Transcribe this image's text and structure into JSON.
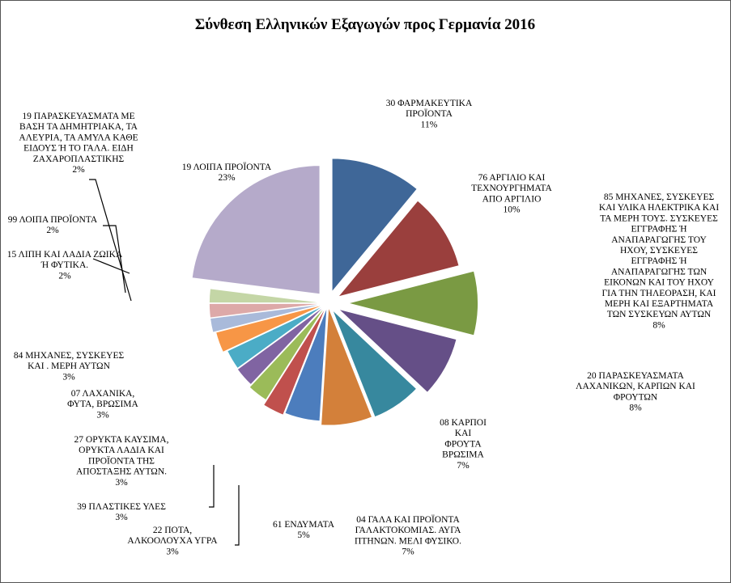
{
  "chart_data": {
    "type": "pie",
    "title": "Σύνθεση Ελληνικών Εξαγωγών προς Γερμανία 2016",
    "unit": "%",
    "slices": [
      {
        "label": [
          "30 ΦΑΡΜΑΚΕΥΤΙΚΑ",
          "ΠΡΟΪΟΝΤΑ",
          "11%"
        ],
        "value": 11,
        "color": "#3F6798"
      },
      {
        "label": [
          "76 ΑΡΓΙΛΙΟ ΚΑΙ",
          "ΤΕΧΝΟΥΡΓΗΜΑΤΑ",
          "ΑΠΟ ΑΡΓΙΛΙΟ",
          "10%"
        ],
        "value": 10,
        "color": "#9A3F3D"
      },
      {
        "label": [
          "85 ΜΗΧΑΝΕΣ, ΣΥΣΚΕΥΕΣ",
          "ΚΑΙ ΥΛΙΚΑ ΗΛΕΚΤΡΙΚΑ ΚΑΙ",
          "ΤΑ ΜΕΡΗ ΤΟΥΣ. ΣΥΣΚΕΥΕΣ",
          "ΕΓΓΡΑΦΗΣ Ή",
          "ΑΝΑΠΑΡΑΓΩΓΗΣ ΤΟΥ",
          "ΗΧΟΥ, ΣΥΣΚΕΥΕΣ",
          "ΕΓΓΡΑΦΗΣ Ή",
          "ΑΝΑΠΑΡΑΓΩΓΗΣ ΤΩΝ",
          "ΕΙΚΟΝΩΝ ΚΑΙ ΤΟΥ ΗΧΟΥ",
          "ΓΙΑ ΤΗΝ ΤΗΛΕΟΡΑΣΗ, ΚΑΙ",
          "ΜΕΡΗ ΚΑΙ ΕΞΑΡΤΗΜΑΤΑ",
          "ΤΩΝ ΣΥΣΚΕΥΩΝ ΑΥΤΩΝ",
          "8%"
        ],
        "value": 8,
        "color": "#7A9A43"
      },
      {
        "label": [
          "20 ΠΑΡΑΣΚΕΥΑΣΜΑΤΑ",
          "ΛΑΧΑΝΙΚΩΝ, ΚΑΡΠΩΝ ΚΑΙ",
          "ΦΡΟΥΤΩΝ",
          "8%"
        ],
        "value": 8,
        "color": "#654F87"
      },
      {
        "label": [
          "08 ΚΑΡΠΟΙ",
          "ΚΑΙ",
          "ΦΡΟΥΤΑ",
          "ΒΡΩΣΙΜΑ",
          "7%"
        ],
        "value": 7,
        "color": "#37889E"
      },
      {
        "label": [
          "04 ΓΑΛΑ ΚΑΙ ΠΡΟΪΟΝΤΑ",
          "ΓΑΛΑΚΤΟΚΟΜΙΑΣ. ΑΥΓΑ",
          "ΠΤΗΝΩΝ. ΜΕΛΙ ΦΥΣΙΚΟ.",
          "7%"
        ],
        "value": 7,
        "color": "#D3803A"
      },
      {
        "label": [
          "61 ΕΝΔΥΜΑΤΑ",
          "5%"
        ],
        "value": 5,
        "color": "#4C7DBD"
      },
      {
        "label": [
          "22 ΠΟΤΑ,",
          "ΑΛΚΟΟΛΟΥΧΑ ΥΓΡΑ",
          "3%"
        ],
        "value": 3,
        "color": "#C0504D"
      },
      {
        "label": [
          "39 ΠΛΑΣΤΙΚΕΣ ΥΛΕΣ",
          "3%"
        ],
        "value": 3,
        "color": "#9BBB59"
      },
      {
        "label": [
          "27 ΟΡΥΚΤΑ ΚΑΥΣΙΜΑ,",
          "ΟΡΥΚΤΑ ΛΑΔΙΑ ΚΑΙ",
          "ΠΡΟΪΟΝΤΑ ΤΗΣ",
          "ΑΠΟΣΤΑΞΗΣ ΑΥΤΩΝ.",
          "3%"
        ],
        "value": 3,
        "color": "#8064A2"
      },
      {
        "label": [
          "07 ΛΑΧΑΝΙΚΑ,",
          "ΦΥΤΑ, ΒΡΩΣΙΜΑ",
          "3%"
        ],
        "value": 3,
        "color": "#4BACC6"
      },
      {
        "label": [
          "84 ΜΗΧΑΝΕΣ, ΣΥΣΚΕΥΕΣ",
          "ΚΑΙ . ΜΕΡΗ ΑΥΤΩΝ",
          "3%"
        ],
        "value": 3,
        "color": "#F79646"
      },
      {
        "label": [
          "15 ΛΙΠΗ ΚΑΙ ΛΑΔΙΑ ΖΩΙΚΑ",
          "Ή ΦΥΤΙΚΑ.",
          "2%"
        ],
        "value": 2,
        "color": "#A9BADA"
      },
      {
        "label": [
          "99 ΛΟΙΠΑ ΠΡΟΪΟΝΤΑ",
          "2%"
        ],
        "value": 2,
        "color": "#DDA9A8"
      },
      {
        "label": [
          "19 ΠΑΡΑΣΚΕΥΑΣΜΑΤΑ ΜΕ",
          "ΒΑΣΗ ΤΑ ΔΗΜΗΤΡΙΑΚΑ, ΤΑ",
          "ΑΛΕΥΡΙΑ, ΤΑ ΑΜΥΛΑ ΚΑΘΕ",
          "ΕΙΔΟΥΣ Ή ΤΟ ΓΑΛΑ. ΕΙΔΗ",
          "ΖΑΧΑΡΟΠΛΑΣΤΙΚΗΣ",
          "2%"
        ],
        "value": 2,
        "color": "#C4D6A6"
      },
      {
        "label": [
          "19 ΛΟΙΠΑ ΠΡΟΪΟΝΤΑ",
          "23%"
        ],
        "value": 23,
        "color": "#B5AACA"
      }
    ],
    "legend": "none"
  }
}
